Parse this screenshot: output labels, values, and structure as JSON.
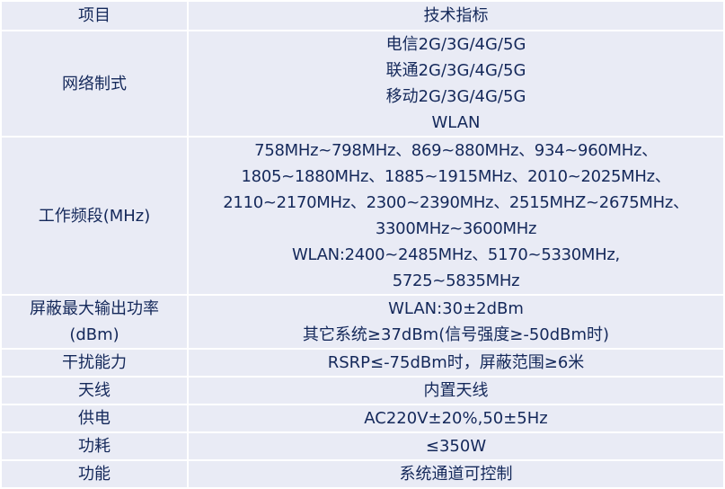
{
  "header": {
    "item": "项目",
    "spec": "技术指标"
  },
  "rows": [
    {
      "item": [
        "网络制式"
      ],
      "spec": [
        "电信2G/3G/4G/5G",
        "联通2G/3G/4G/5G",
        "移动2G/3G/4G/5G",
        "WLAN"
      ]
    },
    {
      "item": [
        "工作频段(MHz)"
      ],
      "spec": [
        "758MHz~798MHz、869~880MHz、934~960MHz、",
        "1805~1880MHz、1885~1915MHz、2010~2025MHz、",
        "2110~2170MHz、2300~2390MHz、2515MHZ~2675MHz、",
        "3300MHz~3600MHz",
        "WLAN:2400~2485MHz、5170~5330MHz,",
        "5725~5835MHz"
      ]
    },
    {
      "item": [
        "屏蔽最大输出功率",
        "(dBm)"
      ],
      "spec": [
        "WLAN:30±2dBm",
        "其它系统≥37dBm(信号强度≥-50dBm时)"
      ]
    },
    {
      "item": [
        "干扰能力"
      ],
      "spec": [
        "RSRP≤-75dBm时，屏蔽范围≥6米"
      ]
    },
    {
      "item": [
        "天线"
      ],
      "spec": [
        "内置天线"
      ]
    },
    {
      "item": [
        "供电"
      ],
      "spec": [
        "AC220V±20%,50±5Hz"
      ]
    },
    {
      "item": [
        "功耗"
      ],
      "spec": [
        "≤350W"
      ]
    },
    {
      "item": [
        "功能"
      ],
      "spec": [
        "系统通道可控制"
      ]
    }
  ]
}
